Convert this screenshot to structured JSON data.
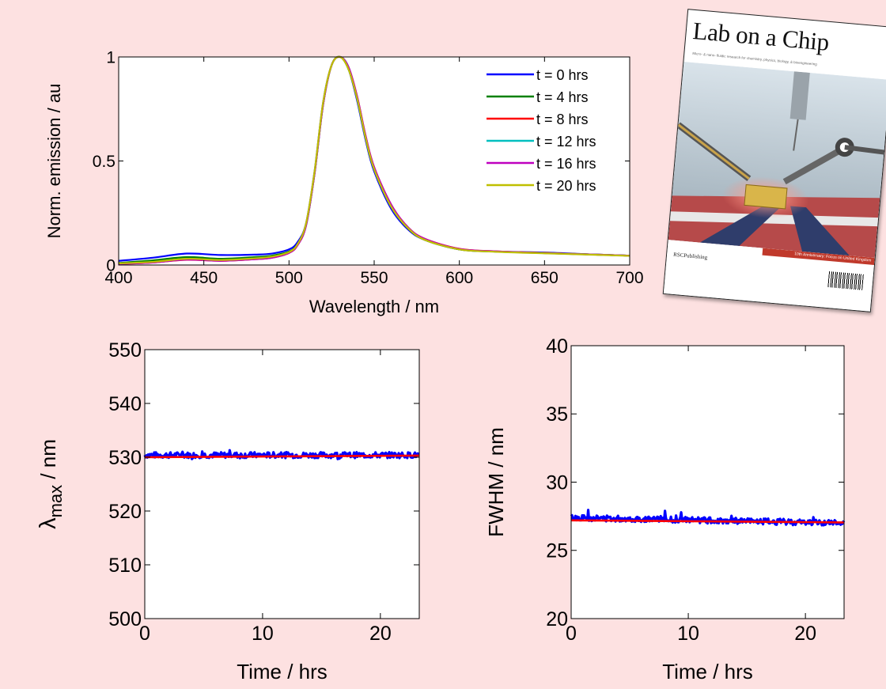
{
  "chart_data": [
    {
      "type": "line",
      "title": "",
      "xlabel": "Wavelength / nm",
      "ylabel": "Norm. emission / au",
      "xlim": [
        400,
        700
      ],
      "ylim": [
        0,
        1
      ],
      "xticks": [
        "400",
        "450",
        "500",
        "550",
        "600",
        "650",
        "700"
      ],
      "yticks": [
        "0",
        "0.5",
        "1"
      ],
      "legend_position": "top-right",
      "series": [
        {
          "name": "t = 0 hrs",
          "color": "#0000ff",
          "x": [
            400,
            420,
            440,
            460,
            480,
            490,
            500,
            505,
            510,
            515,
            520,
            525,
            530,
            535,
            540,
            545,
            550,
            560,
            570,
            580,
            600,
            620,
            650,
            680,
            700
          ],
          "y": [
            0.02,
            0.035,
            0.055,
            0.048,
            0.05,
            0.055,
            0.075,
            0.11,
            0.2,
            0.45,
            0.78,
            0.96,
            1.0,
            0.94,
            0.79,
            0.6,
            0.45,
            0.27,
            0.17,
            0.12,
            0.075,
            0.065,
            0.06,
            0.05,
            0.045
          ]
        },
        {
          "name": "t = 4 hrs",
          "color": "#008000",
          "x": [
            400,
            420,
            440,
            460,
            480,
            490,
            500,
            505,
            510,
            515,
            520,
            525,
            530,
            535,
            540,
            545,
            550,
            560,
            570,
            580,
            600,
            620,
            650,
            680,
            700
          ],
          "y": [
            0.01,
            0.022,
            0.038,
            0.03,
            0.038,
            0.045,
            0.065,
            0.1,
            0.19,
            0.44,
            0.77,
            0.96,
            1.0,
            0.94,
            0.8,
            0.61,
            0.46,
            0.28,
            0.175,
            0.12,
            0.075,
            0.065,
            0.058,
            0.05,
            0.045
          ]
        },
        {
          "name": "t = 8 hrs",
          "color": "#ff0000",
          "x": [
            400,
            420,
            440,
            460,
            480,
            490,
            500,
            505,
            510,
            515,
            520,
            525,
            530,
            535,
            540,
            545,
            550,
            560,
            570,
            580,
            600,
            620,
            650,
            680,
            700
          ],
          "y": [
            0.005,
            0.012,
            0.025,
            0.02,
            0.028,
            0.035,
            0.058,
            0.095,
            0.19,
            0.44,
            0.77,
            0.96,
            1.0,
            0.95,
            0.81,
            0.62,
            0.47,
            0.29,
            0.18,
            0.125,
            0.078,
            0.066,
            0.058,
            0.05,
            0.045
          ]
        },
        {
          "name": "t = 12 hrs",
          "color": "#00bfbf",
          "x": [
            400,
            420,
            440,
            460,
            480,
            490,
            500,
            505,
            510,
            515,
            520,
            525,
            530,
            535,
            540,
            545,
            550,
            560,
            570,
            580,
            600,
            620,
            650,
            680,
            700
          ],
          "y": [
            0.006,
            0.013,
            0.027,
            0.021,
            0.029,
            0.036,
            0.06,
            0.097,
            0.19,
            0.44,
            0.77,
            0.96,
            1.0,
            0.95,
            0.8,
            0.61,
            0.46,
            0.28,
            0.178,
            0.122,
            0.076,
            0.065,
            0.057,
            0.05,
            0.045
          ]
        },
        {
          "name": "t = 16 hrs",
          "color": "#bf00bf",
          "x": [
            400,
            420,
            440,
            460,
            480,
            490,
            500,
            505,
            510,
            515,
            520,
            525,
            530,
            535,
            540,
            545,
            550,
            560,
            570,
            580,
            600,
            620,
            650,
            680,
            700
          ],
          "y": [
            0.006,
            0.012,
            0.026,
            0.02,
            0.028,
            0.035,
            0.058,
            0.095,
            0.19,
            0.44,
            0.77,
            0.96,
            1.0,
            0.95,
            0.81,
            0.62,
            0.47,
            0.29,
            0.18,
            0.125,
            0.077,
            0.066,
            0.057,
            0.05,
            0.045
          ]
        },
        {
          "name": "t = 20 hrs",
          "color": "#bfbf00",
          "x": [
            400,
            420,
            440,
            460,
            480,
            490,
            500,
            505,
            510,
            515,
            520,
            525,
            530,
            535,
            540,
            545,
            550,
            560,
            570,
            580,
            600,
            620,
            650,
            680,
            700
          ],
          "y": [
            0.008,
            0.015,
            0.03,
            0.024,
            0.032,
            0.04,
            0.062,
            0.1,
            0.2,
            0.45,
            0.78,
            0.96,
            1.0,
            0.94,
            0.8,
            0.61,
            0.46,
            0.28,
            0.176,
            0.12,
            0.075,
            0.064,
            0.056,
            0.049,
            0.044
          ]
        }
      ]
    },
    {
      "type": "line",
      "title": "",
      "xlabel": "Time / hrs",
      "ylabel_main": "λ",
      "ylabel_sub": "max",
      "ylabel_unit": " / nm",
      "xlim": [
        0,
        23.3
      ],
      "ylim": [
        500,
        550
      ],
      "xticks": [
        "0",
        "10",
        "20"
      ],
      "yticks": [
        "500",
        "510",
        "520",
        "530",
        "540",
        "550"
      ],
      "series": [
        {
          "name": "",
          "color": "#0000ff",
          "style": "noisy",
          "x": [
            0,
            23.3
          ],
          "y": [
            530.4,
            530.4
          ],
          "noise": 0.55,
          "seed": 7
        },
        {
          "name": "",
          "color": "#ff0000",
          "style": "fit",
          "x": [
            0,
            23.3
          ],
          "y": [
            530.0,
            530.3
          ]
        }
      ]
    },
    {
      "type": "line",
      "title": "",
      "xlabel": "Time / hrs",
      "ylabel": "FWHM / nm",
      "xlim": [
        0,
        23.3
      ],
      "ylim": [
        20,
        40
      ],
      "xticks": [
        "0",
        "10",
        "20"
      ],
      "yticks": [
        "20",
        "25",
        "30",
        "35",
        "40"
      ],
      "series": [
        {
          "name": "",
          "color": "#0000ff",
          "style": "noisy",
          "x": [
            0,
            23.3
          ],
          "y": [
            27.4,
            27.0
          ],
          "noise": 0.22,
          "seed": 13
        },
        {
          "name": "",
          "color": "#ff0000",
          "style": "fit",
          "x": [
            0,
            23.3
          ],
          "y": [
            27.2,
            27.05
          ]
        }
      ]
    }
  ],
  "journal_cover": {
    "title": "Lab on a Chip",
    "tagline": "Micro- & nano- fluidic research for chemistry, physics, biology, & bioengineering",
    "publisher": "RSCPublishing",
    "band_text": "10th Anniversary: Focus on United Kingdom"
  },
  "colors": {
    "background": "#fde1e1"
  }
}
